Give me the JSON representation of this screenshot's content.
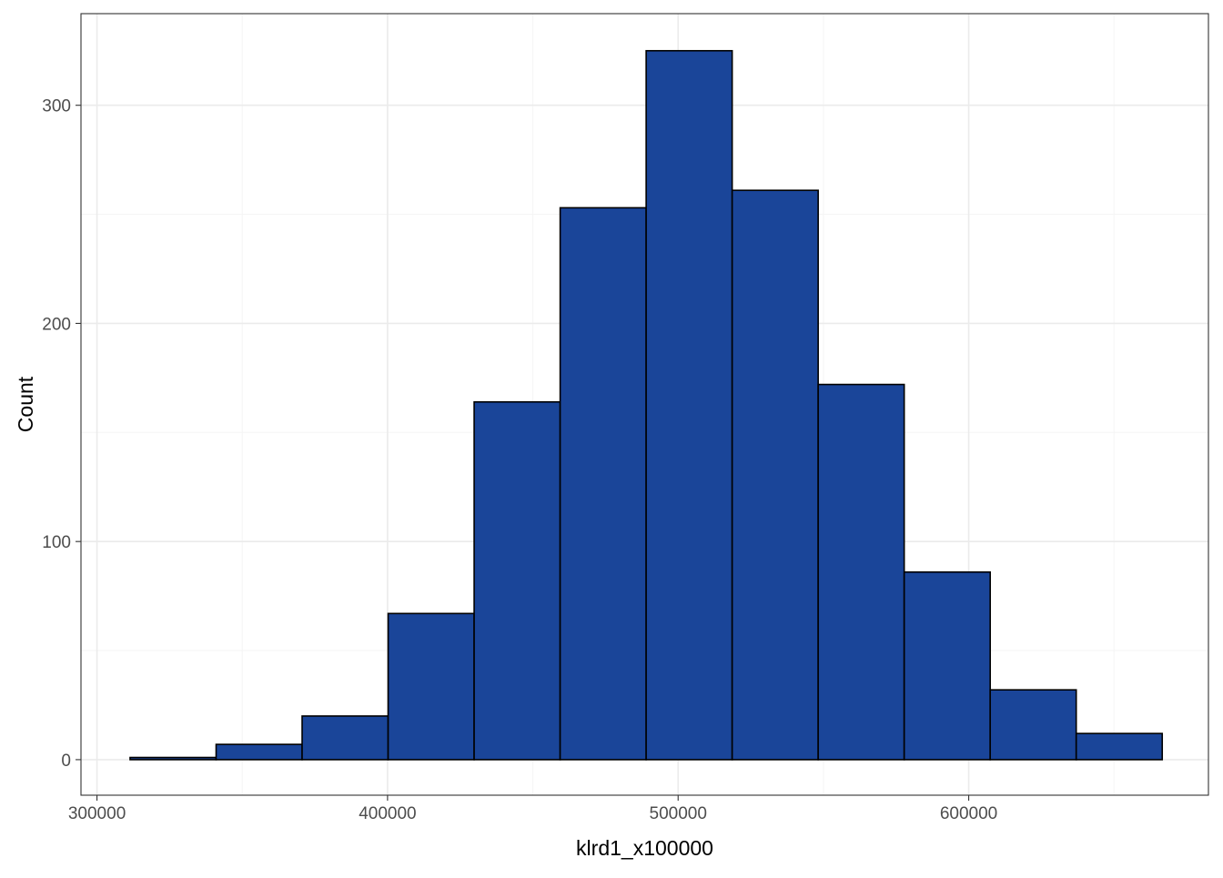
{
  "chart_data": {
    "type": "bar",
    "subtype": "histogram",
    "xlabel": "klrd1_x100000",
    "ylabel": "Count",
    "xlim": [
      294500,
      682500
    ],
    "ylim": [
      -16.3,
      342
    ],
    "x_ticks": [
      300000,
      400000,
      500000,
      600000
    ],
    "x_tick_labels": [
      "300000",
      "400000",
      "500000",
      "600000"
    ],
    "y_ticks": [
      0,
      100,
      200,
      300
    ],
    "y_tick_labels": [
      "0",
      "100",
      "200",
      "300"
    ],
    "grid": true,
    "bins": [
      {
        "x_start": 311400,
        "x_end": 341000,
        "count": 1
      },
      {
        "x_start": 341000,
        "x_end": 370600,
        "count": 7
      },
      {
        "x_start": 370600,
        "x_end": 400200,
        "count": 20
      },
      {
        "x_start": 400200,
        "x_end": 429800,
        "count": 67
      },
      {
        "x_start": 429800,
        "x_end": 459400,
        "count": 164
      },
      {
        "x_start": 459400,
        "x_end": 489000,
        "count": 253
      },
      {
        "x_start": 489000,
        "x_end": 518600,
        "count": 325
      },
      {
        "x_start": 518600,
        "x_end": 548200,
        "count": 261
      },
      {
        "x_start": 548200,
        "x_end": 577800,
        "count": 172
      },
      {
        "x_start": 577800,
        "x_end": 607400,
        "count": 86
      },
      {
        "x_start": 607400,
        "x_end": 637000,
        "count": 32
      },
      {
        "x_start": 637000,
        "x_end": 666600,
        "count": 12
      }
    ],
    "colors": {
      "bar_fill": "#1a4599",
      "bar_outline": "#000000",
      "grid_major": "#ebebeb",
      "grid_minor": "#f5f5f5",
      "panel_border": "#333333"
    }
  }
}
